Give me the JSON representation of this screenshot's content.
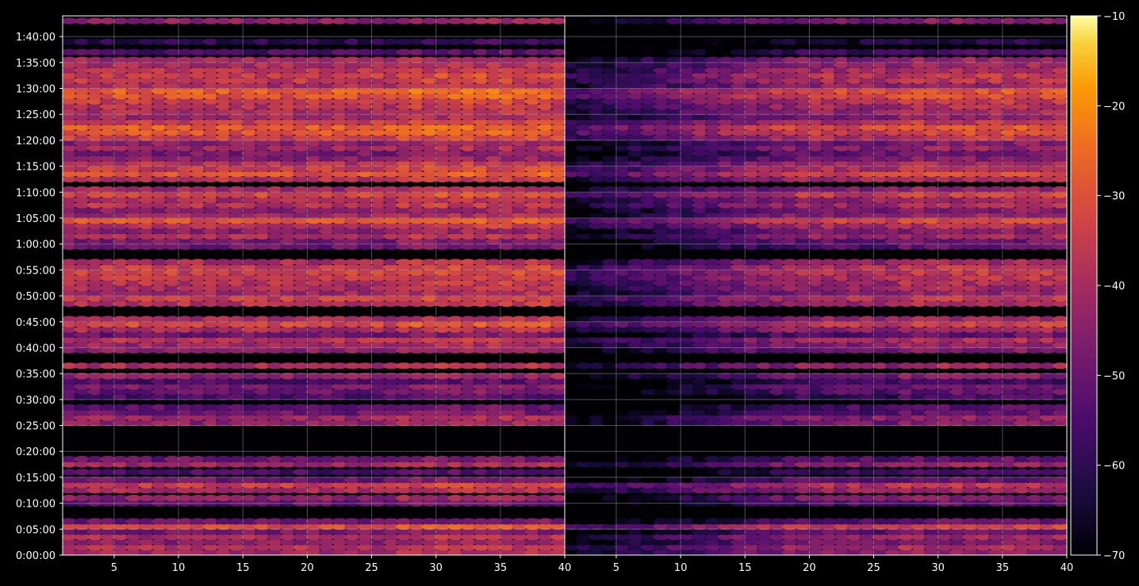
{
  "chart_data": {
    "type": "heatmap",
    "colormap": "inferno",
    "background": "#000000",
    "panels": [
      {
        "name": "",
        "x_ticks": [
          5,
          10,
          15,
          20,
          25,
          30,
          35,
          40
        ],
        "xlim": [
          1,
          40
        ]
      },
      {
        "name": "",
        "x_ticks": [
          5,
          10,
          15,
          20,
          25,
          30,
          35,
          40
        ],
        "xlim": [
          1,
          40
        ]
      }
    ],
    "y_ticks": [
      "0:00:00",
      "0:05:00",
      "0:10:00",
      "0:15:00",
      "0:20:00",
      "0:25:00",
      "0:30:00",
      "0:35:00",
      "0:40:00",
      "0:45:00",
      "0:50:00",
      "0:55:00",
      "1:00:00",
      "1:05:00",
      "1:10:00",
      "1:15:00",
      "1:20:00",
      "1:25:00",
      "1:30:00",
      "1:35:00",
      "1:40:00"
    ],
    "ylim_minutes": [
      0,
      104
    ],
    "colorbar": {
      "ticks": [
        "−10",
        "−20",
        "−30",
        "−40",
        "−50",
        "−60",
        "−70"
      ],
      "range": [
        -70,
        -10
      ]
    },
    "grid": true,
    "left_panel_band_levels_dB": [
      {
        "t": 0.5,
        "v": -42
      },
      {
        "t": 1.5,
        "v": -38
      },
      {
        "t": 2.5,
        "v": -45
      },
      {
        "t": 3.5,
        "v": -40
      },
      {
        "t": 4.5,
        "v": -48
      },
      {
        "t": 5.5,
        "v": -32
      },
      {
        "t": 6.5,
        "v": -50
      },
      {
        "t": 10.0,
        "v": -52
      },
      {
        "t": 11.0,
        "v": -45
      },
      {
        "t": 12.5,
        "v": -40
      },
      {
        "t": 13.5,
        "v": -35
      },
      {
        "t": 14.5,
        "v": -50
      },
      {
        "t": 16.0,
        "v": -55
      },
      {
        "t": 17.5,
        "v": -42
      },
      {
        "t": 18.5,
        "v": -50
      },
      {
        "t": 25.5,
        "v": -45
      },
      {
        "t": 26.5,
        "v": -42
      },
      {
        "t": 27.5,
        "v": -50
      },
      {
        "t": 28.5,
        "v": -52
      },
      {
        "t": 30.5,
        "v": -55
      },
      {
        "t": 31.5,
        "v": -50
      },
      {
        "t": 32.5,
        "v": -48
      },
      {
        "t": 33.5,
        "v": -55
      },
      {
        "t": 34.5,
        "v": -45
      },
      {
        "t": 36.5,
        "v": -40
      },
      {
        "t": 39.5,
        "v": -45
      },
      {
        "t": 40.5,
        "v": -42
      },
      {
        "t": 41.5,
        "v": -38
      },
      {
        "t": 42.5,
        "v": -50
      },
      {
        "t": 43.5,
        "v": -40
      },
      {
        "t": 44.5,
        "v": -32
      },
      {
        "t": 45.5,
        "v": -40
      },
      {
        "t": 48.5,
        "v": -38
      },
      {
        "t": 49.5,
        "v": -35
      },
      {
        "t": 50.5,
        "v": -42
      },
      {
        "t": 51.5,
        "v": -40
      },
      {
        "t": 52.5,
        "v": -38
      },
      {
        "t": 53.5,
        "v": -36
      },
      {
        "t": 54.5,
        "v": -34
      },
      {
        "t": 55.5,
        "v": -35
      },
      {
        "t": 56.5,
        "v": -40
      },
      {
        "t": 59.5,
        "v": -50
      },
      {
        "t": 60.5,
        "v": -48
      },
      {
        "t": 61.5,
        "v": -40
      },
      {
        "t": 62.5,
        "v": -45
      },
      {
        "t": 63.5,
        "v": -38
      },
      {
        "t": 64.5,
        "v": -30
      },
      {
        "t": 65.5,
        "v": -42
      },
      {
        "t": 66.5,
        "v": -45
      },
      {
        "t": 67.5,
        "v": -38
      },
      {
        "t": 68.5,
        "v": -40
      },
      {
        "t": 69.5,
        "v": -32
      },
      {
        "t": 70.5,
        "v": -42
      },
      {
        "t": 72.5,
        "v": -38
      },
      {
        "t": 73.5,
        "v": -30
      },
      {
        "t": 74.5,
        "v": -35
      },
      {
        "t": 75.5,
        "v": -38
      },
      {
        "t": 76.5,
        "v": -45
      },
      {
        "t": 77.5,
        "v": -48
      },
      {
        "t": 78.5,
        "v": -42
      },
      {
        "t": 79.5,
        "v": -45
      },
      {
        "t": 80.5,
        "v": -35
      },
      {
        "t": 81.5,
        "v": -30
      },
      {
        "t": 82.5,
        "v": -28
      },
      {
        "t": 83.5,
        "v": -35
      },
      {
        "t": 84.5,
        "v": -42
      },
      {
        "t": 85.5,
        "v": -40
      },
      {
        "t": 86.5,
        "v": -38
      },
      {
        "t": 87.5,
        "v": -35
      },
      {
        "t": 88.5,
        "v": -30
      },
      {
        "t": 89.5,
        "v": -28
      },
      {
        "t": 90.5,
        "v": -40
      },
      {
        "t": 91.5,
        "v": -36
      },
      {
        "t": 92.5,
        "v": -34
      },
      {
        "t": 93.5,
        "v": -38
      },
      {
        "t": 94.5,
        "v": -40
      },
      {
        "t": 95.5,
        "v": -42
      },
      {
        "t": 97.0,
        "v": -55
      },
      {
        "t": 99.0,
        "v": -60
      },
      {
        "t": 103.0,
        "v": -45
      }
    ]
  }
}
